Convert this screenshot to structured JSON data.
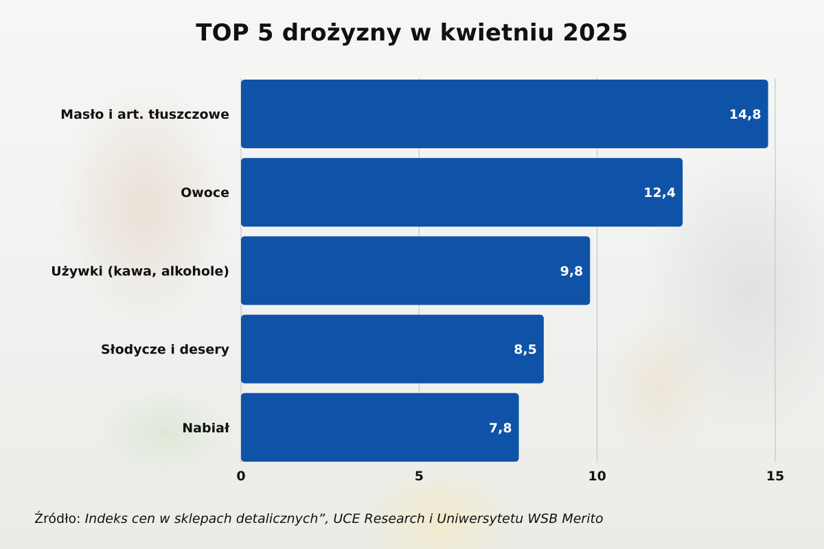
{
  "chart_data": {
    "type": "bar",
    "orientation": "horizontal",
    "title": "TOP 5 drożyzny w kwietniu 2025",
    "categories": [
      "Masło i art. tłuszczowe",
      "Owoce",
      "Używki (kawa, alkohole)",
      "Słodycze i desery",
      "Nabiał"
    ],
    "values": [
      14.8,
      12.4,
      9.8,
      8.5,
      7.8
    ],
    "value_labels": [
      "14,8",
      "12,4",
      "9,8",
      "8,5",
      "7,8"
    ],
    "xlim": [
      0,
      15
    ],
    "x_ticks": [
      0,
      5,
      10,
      15
    ],
    "x_tick_labels": [
      "0",
      "5",
      "10",
      "15"
    ],
    "grid": "vertical",
    "bar_color": "#0e53a7",
    "xlabel": "",
    "ylabel": ""
  },
  "source": {
    "prefix": "Źródło: ",
    "text": "Indeks cen w sklepach detalicznych”, UCE Research i Uniwersytetu WSB Merito"
  }
}
